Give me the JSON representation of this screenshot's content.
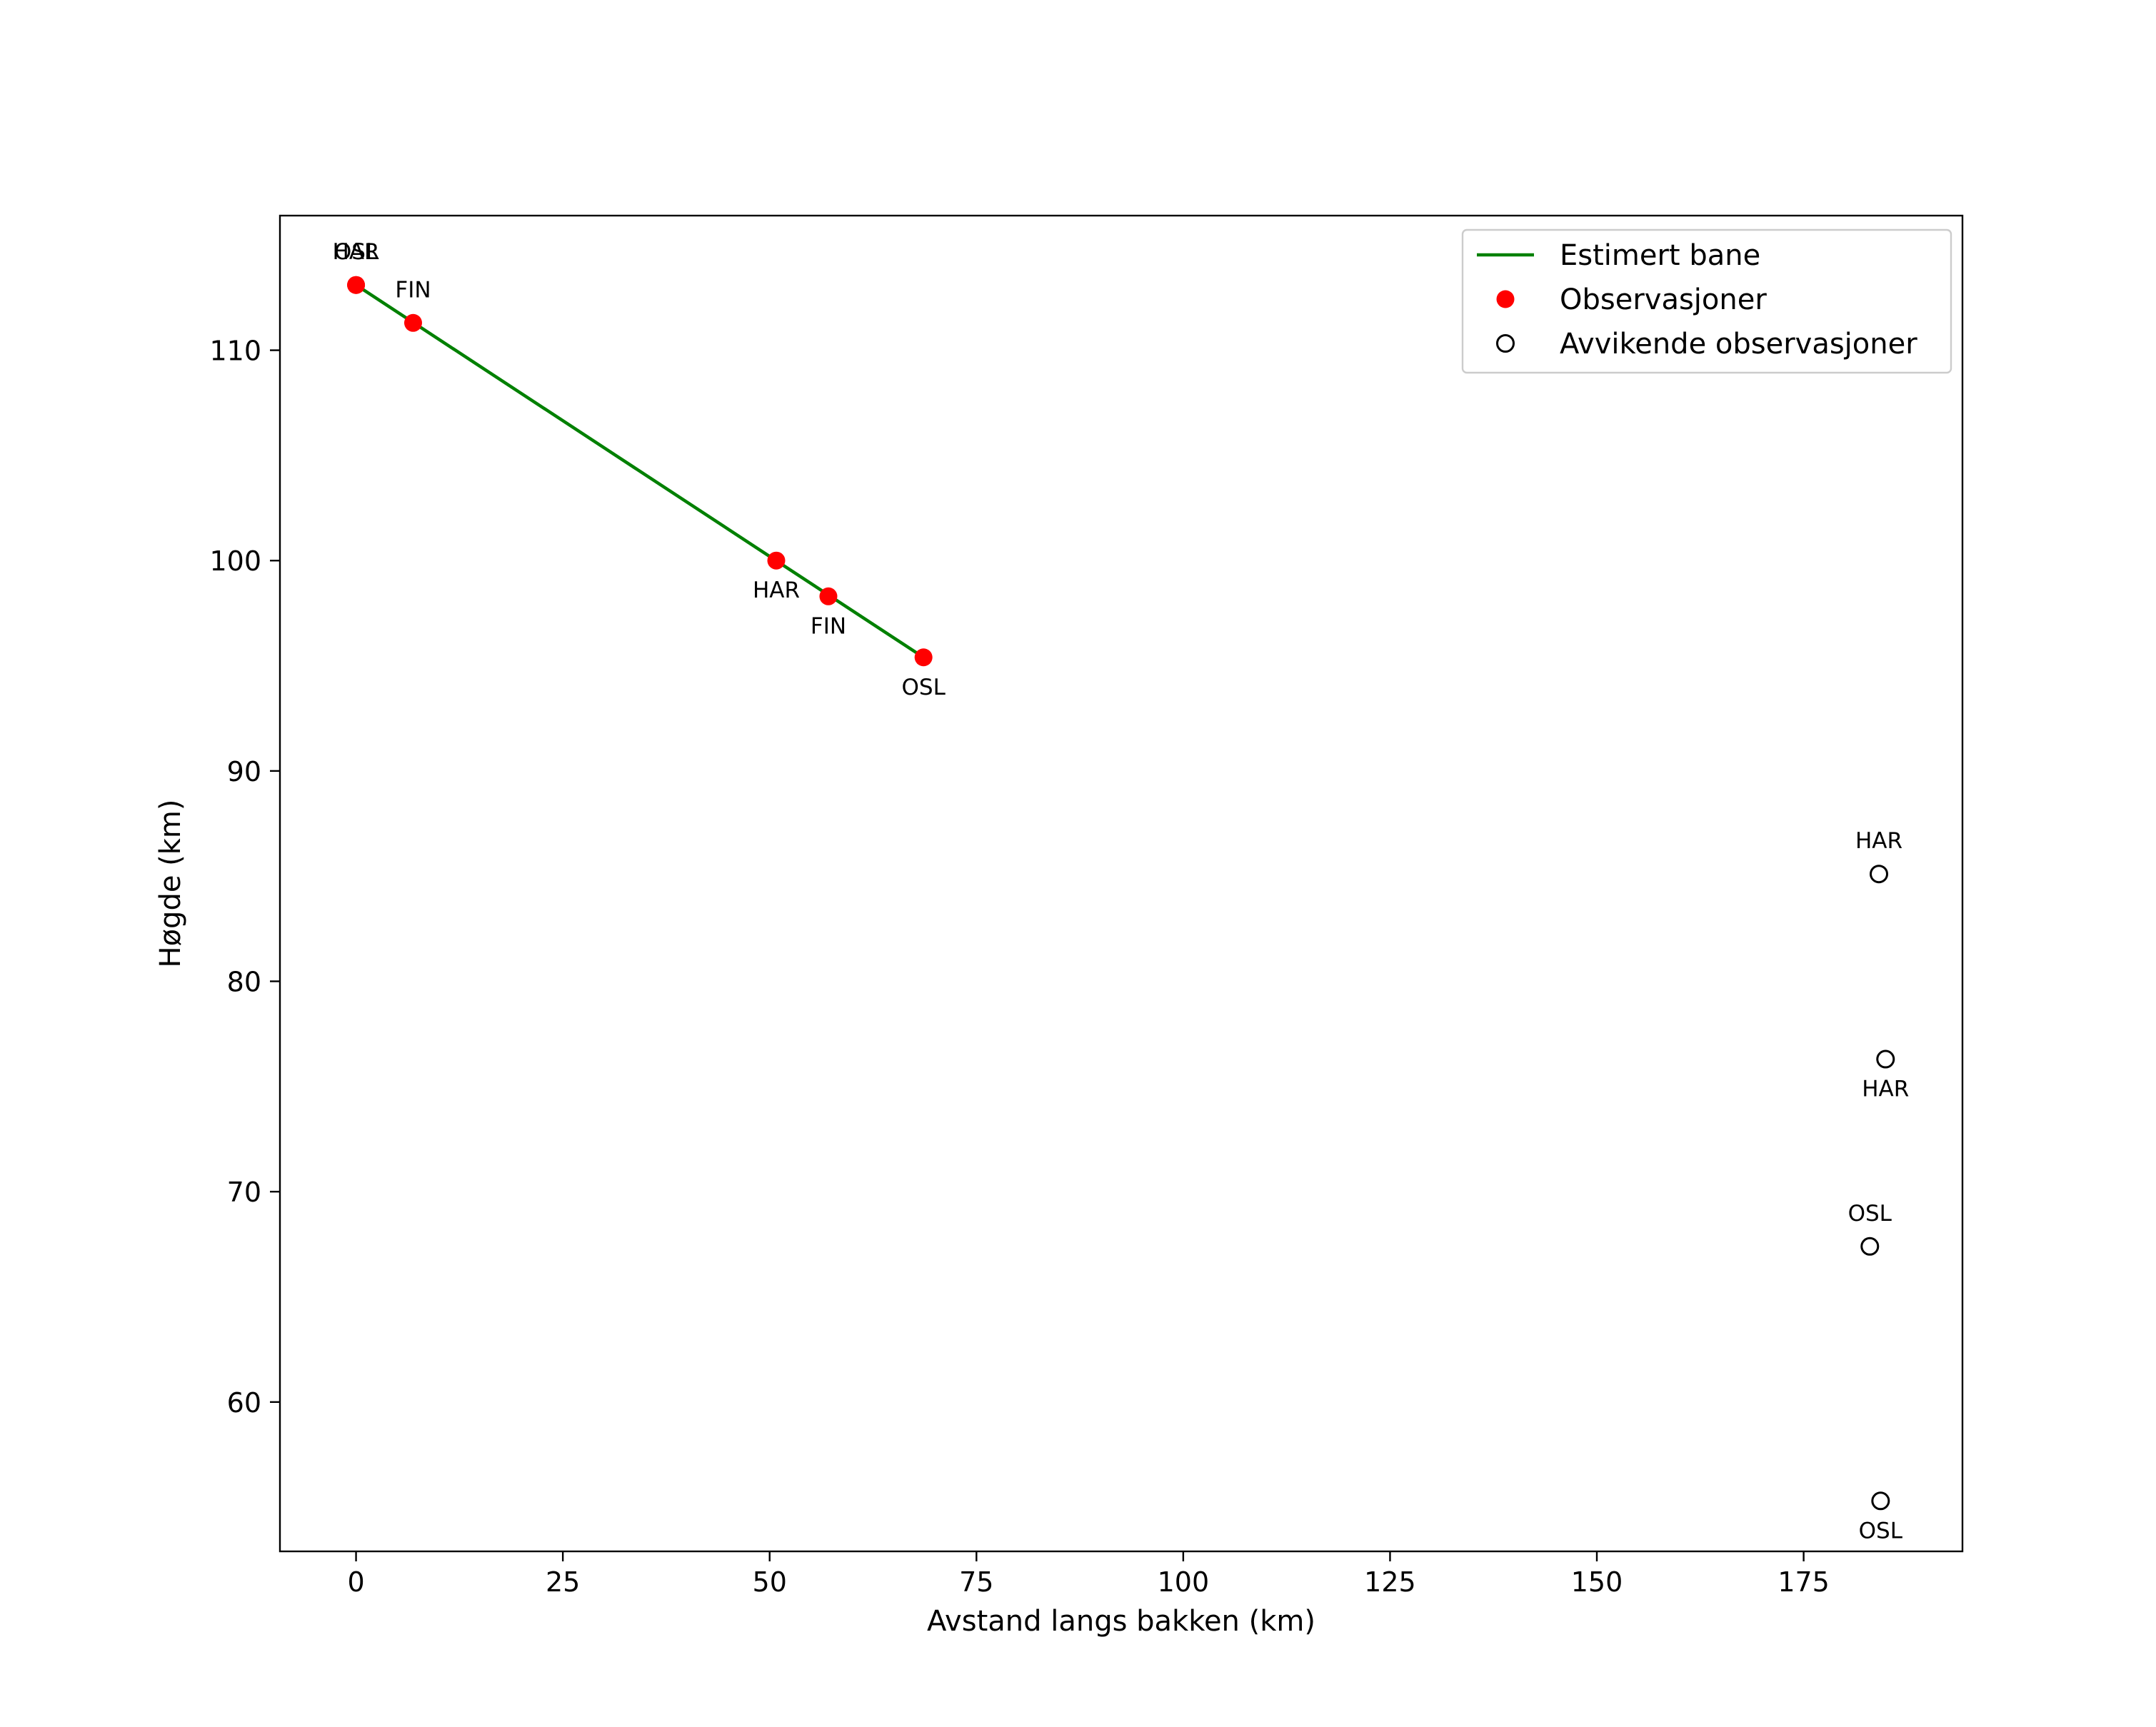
{
  "chart_data": {
    "type": "scatter",
    "title": "",
    "xlabel": "Avstand langs bakken (km)",
    "ylabel": "Høgde (km)",
    "xlim": [
      -9.2,
      194.2
    ],
    "ylim": [
      52.9,
      116.4
    ],
    "xticks": [
      0,
      25,
      50,
      75,
      100,
      125,
      150,
      175
    ],
    "yticks": [
      60,
      70,
      80,
      90,
      100,
      110
    ],
    "grid": false,
    "legend_position": "top-right",
    "colors": {
      "line": "#008000",
      "observation": "#ff0000",
      "outlier_edge": "#000000"
    },
    "series": [
      {
        "name": "Estimert bane",
        "kind": "line",
        "points": [
          {
            "x": 0.0,
            "y": 113.1
          },
          {
            "x": 68.6,
            "y": 95.4
          }
        ]
      },
      {
        "name": "Observasjoner",
        "kind": "scatter",
        "points": [
          {
            "x": 0.0,
            "y": 113.1,
            "label": "HAR",
            "label_pos": "above"
          },
          {
            "x": 0.0,
            "y": 113.1,
            "label": "OSL",
            "label_pos": "above"
          },
          {
            "x": 6.9,
            "y": 111.3,
            "label": "FIN",
            "label_pos": "above"
          },
          {
            "x": 50.8,
            "y": 100.0,
            "label": "HAR",
            "label_pos": "below"
          },
          {
            "x": 57.1,
            "y": 98.3,
            "label": "FIN",
            "label_pos": "below"
          },
          {
            "x": 68.6,
            "y": 95.4,
            "label": "OSL",
            "label_pos": "below"
          }
        ]
      },
      {
        "name": "Avvikende observasjoner",
        "kind": "scatter-open",
        "points": [
          {
            "x": 184.1,
            "y": 85.1,
            "label": "HAR",
            "label_pos": "above"
          },
          {
            "x": 184.9,
            "y": 76.3,
            "label": "HAR",
            "label_pos": "below"
          },
          {
            "x": 183.0,
            "y": 67.4,
            "label": "OSL",
            "label_pos": "above"
          },
          {
            "x": 184.3,
            "y": 55.3,
            "label": "OSL",
            "label_pos": "below"
          }
        ]
      }
    ],
    "legend": [
      {
        "label": "Estimert bane",
        "marker": "line"
      },
      {
        "label": "Observasjoner",
        "marker": "dot"
      },
      {
        "label": "Avvikende observasjoner",
        "marker": "circle"
      }
    ]
  }
}
